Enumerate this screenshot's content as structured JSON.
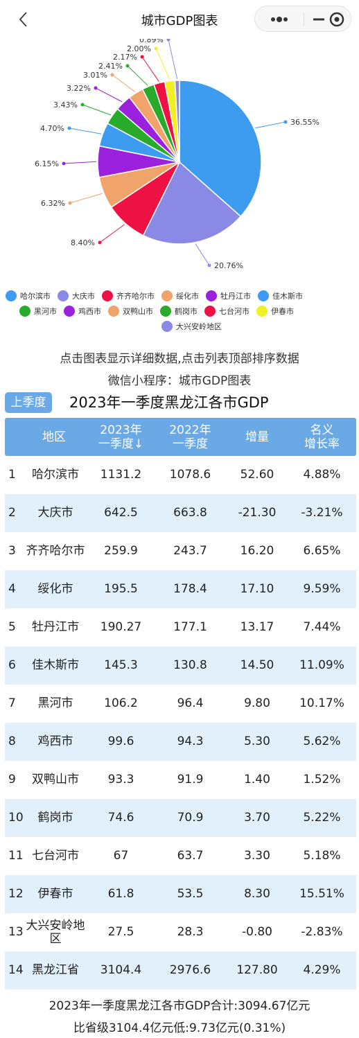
{
  "header": {
    "title": "城市GDP图表"
  },
  "chart_data": {
    "type": "pie",
    "title": "",
    "categories": [
      "哈尔滨市",
      "大庆市",
      "齐齐哈尔市",
      "绥化市",
      "牡丹江市",
      "佳木斯市",
      "黑河市",
      "鸡西市",
      "双鸭山市",
      "鹤岗市",
      "七台河市",
      "伊春市",
      "大兴安岭地区"
    ],
    "values": [
      36.55,
      20.76,
      8.4,
      6.32,
      6.15,
      4.7,
      3.43,
      3.22,
      3.01,
      2.41,
      2.17,
      2.0,
      0.89
    ],
    "labels": [
      "36.55%",
      "20.76%",
      "8.40%",
      "6.32%",
      "6.15%",
      "4.70%",
      "3.43%",
      "3.22%",
      "3.01%",
      "2.41%",
      "2.17%",
      "2.00%",
      "0.89%"
    ],
    "colors": [
      "#3d9cf0",
      "#8b89e6",
      "#ee1244",
      "#f0a36a",
      "#9b21de",
      "#3d9cf0",
      "#2aaa2a",
      "#9b21de",
      "#f0a36a",
      "#2aaa2a",
      "#ee1244",
      "#f0f024",
      "#8b89e6"
    ],
    "legend_position": "bottom"
  },
  "legend": {
    "items": [
      {
        "label": "哈尔滨市",
        "color": "#3d9cf0"
      },
      {
        "label": "大庆市",
        "color": "#8b89e6"
      },
      {
        "label": "齐齐哈尔市",
        "color": "#ee1244"
      },
      {
        "label": "绥化市",
        "color": "#f0a36a"
      },
      {
        "label": "牡丹江市",
        "color": "#9b21de"
      },
      {
        "label": "佳木斯市",
        "color": "#3d9cf0"
      },
      {
        "label": "黑河市",
        "color": "#2aaa2a"
      },
      {
        "label": "鸡西市",
        "color": "#9b21de"
      },
      {
        "label": "双鸭山市",
        "color": "#f0a36a"
      },
      {
        "label": "鹤岗市",
        "color": "#2aaa2a"
      },
      {
        "label": "七台河市",
        "color": "#ee1244"
      },
      {
        "label": "伊春市",
        "color": "#f0f024"
      },
      {
        "label": "大兴安岭地区",
        "color": "#8b89e6"
      }
    ]
  },
  "hints": {
    "line1": "点击图表显示详细数据,点击列表顶部排序数据",
    "line2": "微信小程序：城市GDP图表"
  },
  "season_button": "上季度",
  "table_title": "2023年一季度黑龙江各市GDP",
  "table": {
    "headers": {
      "region": "地区",
      "col2023_l1": "2023年",
      "col2023_l2": "一季度↓",
      "col2022_l1": "2022年",
      "col2022_l2": "一季度",
      "increase": "增量",
      "rate_l1": "名义",
      "rate_l2": "增长率"
    },
    "rows": [
      {
        "idx": "1",
        "name": "哈尔滨市",
        "v2023": "1131.2",
        "v2022": "1078.6",
        "inc": "52.60",
        "rate": "4.88%"
      },
      {
        "idx": "2",
        "name": "大庆市",
        "v2023": "642.5",
        "v2022": "663.8",
        "inc": "-21.30",
        "rate": "-3.21%"
      },
      {
        "idx": "3",
        "name": "齐齐哈尔市",
        "v2023": "259.9",
        "v2022": "243.7",
        "inc": "16.20",
        "rate": "6.65%"
      },
      {
        "idx": "4",
        "name": "绥化市",
        "v2023": "195.5",
        "v2022": "178.4",
        "inc": "17.10",
        "rate": "9.59%"
      },
      {
        "idx": "5",
        "name": "牡丹江市",
        "v2023": "190.27",
        "v2022": "177.1",
        "inc": "13.17",
        "rate": "7.44%"
      },
      {
        "idx": "6",
        "name": "佳木斯市",
        "v2023": "145.3",
        "v2022": "130.8",
        "inc": "14.50",
        "rate": "11.09%"
      },
      {
        "idx": "7",
        "name": "黑河市",
        "v2023": "106.2",
        "v2022": "96.4",
        "inc": "9.80",
        "rate": "10.17%"
      },
      {
        "idx": "8",
        "name": "鸡西市",
        "v2023": "99.6",
        "v2022": "94.3",
        "inc": "5.30",
        "rate": "5.62%"
      },
      {
        "idx": "9",
        "name": "双鸭山市",
        "v2023": "93.3",
        "v2022": "91.9",
        "inc": "1.40",
        "rate": "1.52%"
      },
      {
        "idx": "10",
        "name": "鹤岗市",
        "v2023": "74.6",
        "v2022": "70.9",
        "inc": "3.70",
        "rate": "5.22%"
      },
      {
        "idx": "11",
        "name": "七台河市",
        "v2023": "67",
        "v2022": "63.7",
        "inc": "3.30",
        "rate": "5.18%"
      },
      {
        "idx": "12",
        "name": "伊春市",
        "v2023": "61.8",
        "v2022": "53.5",
        "inc": "8.30",
        "rate": "15.51%"
      },
      {
        "idx": "13",
        "name": "大兴安岭地区",
        "v2023": "27.5",
        "v2022": "28.3",
        "inc": "-0.80",
        "rate": "-2.83%"
      },
      {
        "idx": "14",
        "name": "黑龙江省",
        "v2023": "3104.4",
        "v2022": "2976.6",
        "inc": "127.80",
        "rate": "4.29%"
      }
    ]
  },
  "footer": {
    "line1": "2023年一季度黑龙江各市GDP合计:3094.67亿元",
    "line2": "比省级3104.4亿元低:9.73亿元(0.31%)"
  }
}
